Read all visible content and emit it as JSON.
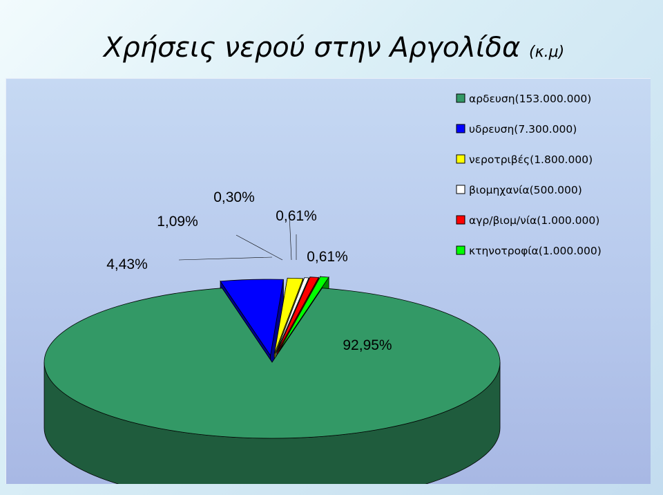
{
  "title": "Χρήσεις νερού στην Αργολίδα",
  "subtitle": "(κ.μ)",
  "chart_data": {
    "type": "pie",
    "title": "Χρήσεις νερού στην Αργολίδα (κ.μ)",
    "categories": [
      "αρδευση(153.000.000)",
      "υδρευση(7.300.000)",
      "νεροτριβές(1.800.000)",
      "βιομηχανία(500.000)",
      "αγρ/βιομ/νία(1.000.000)",
      "κτηνοτροφία(1.000.000)"
    ],
    "values": [
      153000000,
      7300000,
      1800000,
      500000,
      1000000,
      1000000
    ],
    "percent_labels": [
      "92,95%",
      "4,43%",
      "1,09%",
      "0,30%",
      "0,61%",
      "0,61%"
    ],
    "colors": [
      "#339966",
      "#0000ff",
      "#ffff00",
      "#ffffff",
      "#ff0000",
      "#00ff00"
    ],
    "legend_position": "right",
    "exploded": true,
    "three_d": true
  }
}
